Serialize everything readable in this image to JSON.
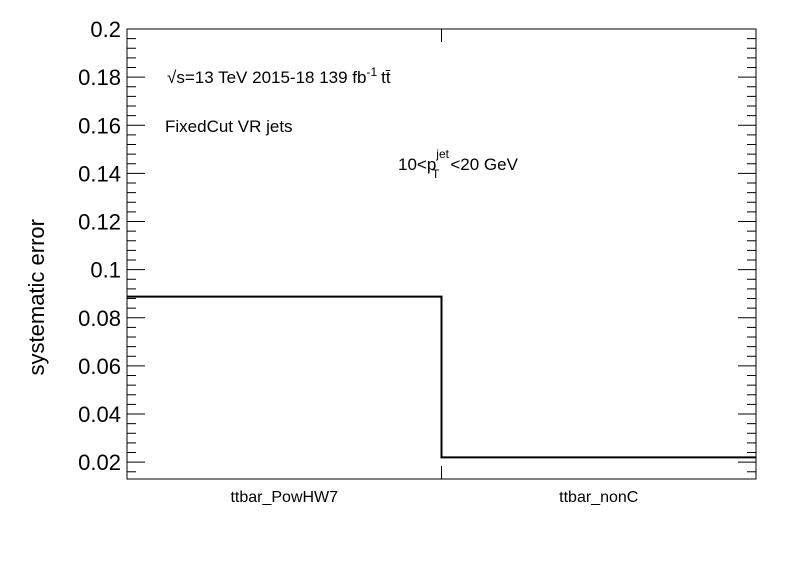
{
  "chart_data": {
    "type": "bar",
    "style": "histogram-step",
    "categories": [
      "ttbar_PowHW7",
      "ttbar_nonC"
    ],
    "values": [
      0.0888,
      0.022
    ],
    "ylabel": "systematic error",
    "xlabel": "",
    "ylim": [
      0.013,
      0.2
    ],
    "yticks": [
      0.02,
      0.04,
      0.06,
      0.08,
      0.1,
      0.12,
      0.14,
      0.16,
      0.18,
      0.2
    ],
    "ytick_labels": [
      "0.02",
      "0.04",
      "0.06",
      "0.08",
      "0.1",
      "0.12",
      "0.14",
      "0.16",
      "0.18",
      "0.2"
    ],
    "grid": false,
    "line_color": "#000000",
    "annotations": {
      "sqrt_symbol": "√",
      "s_eq_energy": "s=13 TeV  2015-18  139 fb",
      "lumi_exp": "-1",
      "ttbar": "tt̄",
      "jets": "FixedCut VR jets",
      "pt_prefix": "10<p",
      "pt_sup": "jet",
      "pt_sub": "T",
      "pt_suffix": "<20 GeV"
    }
  }
}
